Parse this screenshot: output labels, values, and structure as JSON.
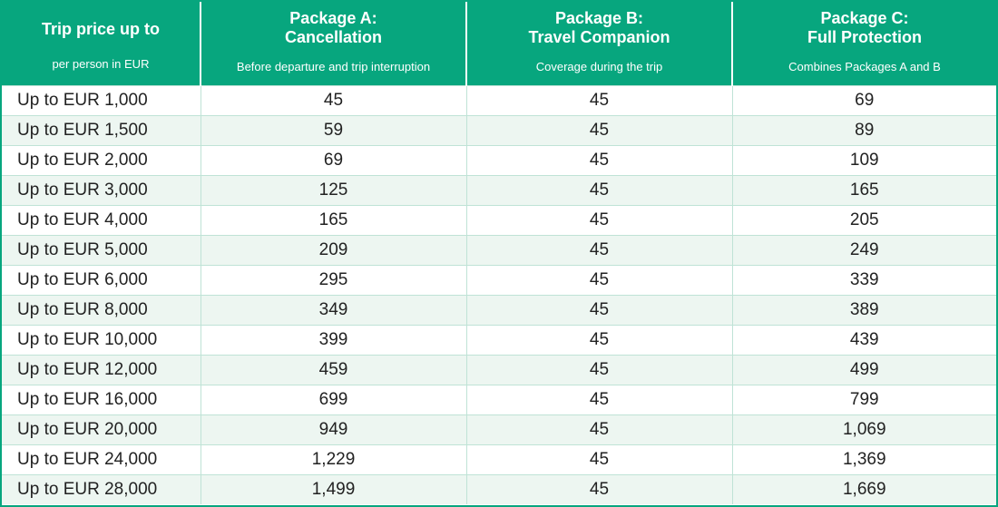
{
  "colors": {
    "header_bg": "#07a67e",
    "header_text": "#ffffff",
    "stripe": "#edf6f1"
  },
  "header": {
    "col0": {
      "title": "Trip price up to",
      "subtitle": "per person in EUR"
    },
    "col1": {
      "title_line1": "Package A:",
      "title_line2": "Cancellation",
      "subtitle": "Before departure and trip interruption"
    },
    "col2": {
      "title_line1": "Package B:",
      "title_line2": "Travel Companion",
      "subtitle": "Coverage during the trip"
    },
    "col3": {
      "title_line1": "Package C:",
      "title_line2": "Full Protection",
      "subtitle": "Combines Packages A and B"
    }
  },
  "rows": [
    [
      "Up to EUR 1,000",
      "45",
      "45",
      "69"
    ],
    [
      "Up to EUR 1,500",
      "59",
      "45",
      "89"
    ],
    [
      "Up to EUR 2,000",
      "69",
      "45",
      "109"
    ],
    [
      "Up to EUR 3,000",
      "125",
      "45",
      "165"
    ],
    [
      "Up to EUR 4,000",
      "165",
      "45",
      "205"
    ],
    [
      "Up to EUR 5,000",
      "209",
      "45",
      "249"
    ],
    [
      "Up to EUR 6,000",
      "295",
      "45",
      "339"
    ],
    [
      "Up to EUR 8,000",
      "349",
      "45",
      "389"
    ],
    [
      "Up to EUR 10,000",
      "399",
      "45",
      "439"
    ],
    [
      "Up to EUR 12,000",
      "459",
      "45",
      "499"
    ],
    [
      "Up to EUR 16,000",
      "699",
      "45",
      "799"
    ],
    [
      "Up to EUR 20,000",
      "949",
      "45",
      "1,069"
    ],
    [
      "Up to EUR 24,000",
      "1,229",
      "45",
      "1,369"
    ],
    [
      "Up to EUR 28,000",
      "1,499",
      "45",
      "1,669"
    ]
  ]
}
